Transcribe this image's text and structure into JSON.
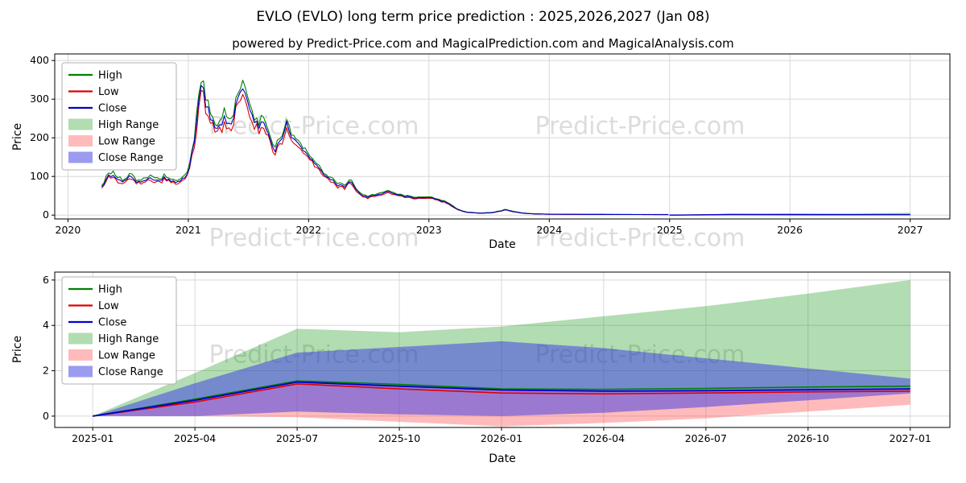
{
  "title": "EVLO (EVLO) long term price prediction : 2025,2026,2027 (Jan 08)",
  "subtitle": "powered by Predict-Price.com and MagicalPrediction.com and MagicalAnalysis.com",
  "watermark": "Predict-Price.com",
  "colors": {
    "high": "#008000",
    "low": "#e00000",
    "close": "#0000cd",
    "high_range": "rgba(0,140,0,0.30)",
    "low_range": "rgba(255,60,60,0.35)",
    "close_range": "rgba(55,55,230,0.50)",
    "grid": "#d8d8d8",
    "axis": "#000000"
  },
  "chart_data": [
    {
      "type": "line",
      "role": "history-and-prediction",
      "title": "",
      "xlabel": "Date",
      "ylabel": "Price",
      "xlim": [
        2019.89,
        2027.33
      ],
      "ylim": [
        -10,
        417
      ],
      "xticks": [
        2020,
        2021,
        2022,
        2023,
        2024,
        2025,
        2026,
        2027
      ],
      "yticks": [
        0,
        100,
        200,
        300,
        400
      ],
      "grid": true,
      "legend_position": "upper-left",
      "legend": [
        {
          "label": "High",
          "swatch": "line",
          "color": "high"
        },
        {
          "label": "Low",
          "swatch": "line",
          "color": "low"
        },
        {
          "label": "Close",
          "swatch": "line",
          "color": "close"
        },
        {
          "label": "High Range",
          "swatch": "patch",
          "color": "high_range"
        },
        {
          "label": "Low Range",
          "swatch": "patch",
          "color": "low_range"
        },
        {
          "label": "Close Range",
          "swatch": "patch",
          "color": "close_range"
        }
      ],
      "history_anchors": [
        [
          2020.28,
          72,
          0.06
        ],
        [
          2020.33,
          96,
          0.1
        ],
        [
          2020.38,
          108,
          0.1
        ],
        [
          2020.44,
          84,
          0.08
        ],
        [
          2020.5,
          100,
          0.09
        ],
        [
          2020.56,
          90,
          0.07
        ],
        [
          2020.62,
          84,
          0.07
        ],
        [
          2020.68,
          95,
          0.08
        ],
        [
          2020.74,
          87,
          0.07
        ],
        [
          2020.8,
          95,
          0.07
        ],
        [
          2020.87,
          85,
          0.06
        ],
        [
          2020.93,
          88,
          0.06
        ],
        [
          2021.0,
          110,
          0.08
        ],
        [
          2021.05,
          190,
          0.1
        ],
        [
          2021.1,
          345,
          0.12
        ],
        [
          2021.14,
          295,
          0.09
        ],
        [
          2021.18,
          248,
          0.08
        ],
        [
          2021.24,
          215,
          0.07
        ],
        [
          2021.3,
          252,
          0.08
        ],
        [
          2021.36,
          228,
          0.06
        ],
        [
          2021.42,
          310,
          0.07
        ],
        [
          2021.46,
          322,
          0.06
        ],
        [
          2021.52,
          255,
          0.07
        ],
        [
          2021.58,
          228,
          0.06
        ],
        [
          2021.62,
          238,
          0.06
        ],
        [
          2021.68,
          200,
          0.06
        ],
        [
          2021.72,
          168,
          0.06
        ],
        [
          2021.78,
          195,
          0.07
        ],
        [
          2021.82,
          248,
          0.07
        ],
        [
          2021.86,
          198,
          0.06
        ],
        [
          2021.92,
          178,
          0.05
        ],
        [
          2022.0,
          150,
          0.05
        ],
        [
          2022.08,
          124,
          0.06
        ],
        [
          2022.16,
          98,
          0.06
        ],
        [
          2022.24,
          78,
          0.07
        ],
        [
          2022.3,
          74,
          0.07
        ],
        [
          2022.34,
          88,
          0.06
        ],
        [
          2022.42,
          58,
          0.06
        ],
        [
          2022.48,
          46,
          0.06
        ],
        [
          2022.54,
          52,
          0.05
        ],
        [
          2022.62,
          57,
          0.06
        ],
        [
          2022.66,
          62,
          0.06
        ],
        [
          2022.72,
          54,
          0.05
        ],
        [
          2022.8,
          48,
          0.05
        ],
        [
          2022.9,
          44,
          0.04
        ],
        [
          2023.0,
          46,
          0.05
        ],
        [
          2023.08,
          40,
          0.04
        ],
        [
          2023.16,
          30,
          0.05
        ],
        [
          2023.24,
          14,
          0.06
        ],
        [
          2023.32,
          7,
          0.05
        ],
        [
          2023.42,
          5,
          0.04
        ],
        [
          2023.52,
          6,
          0.05
        ],
        [
          2023.6,
          11,
          0.07
        ],
        [
          2023.64,
          14,
          0.07
        ],
        [
          2023.7,
          9,
          0.05
        ],
        [
          2023.78,
          5,
          0.04
        ],
        [
          2023.88,
          3,
          0.03
        ],
        [
          2024.0,
          2.2,
          0.03
        ],
        [
          2024.25,
          1.8,
          0.02
        ],
        [
          2024.5,
          1.6,
          0.02
        ],
        [
          2024.75,
          1.4,
          0.02
        ],
        [
          2025.0,
          1.3,
          0.02
        ]
      ]
    },
    {
      "type": "line",
      "role": "prediction-detail",
      "title": "",
      "xlabel": "Date",
      "ylabel": "Price",
      "xlim": [
        2024.907,
        2027.097
      ],
      "ylim": [
        -0.5,
        6.35
      ],
      "x_labels": [
        "2025-01",
        "2025-04",
        "2025-07",
        "2025-10",
        "2026-01",
        "2026-04",
        "2026-07",
        "2026-10",
        "2027-01"
      ],
      "x_years": [
        2025.0,
        2025.25,
        2025.5,
        2025.75,
        2026.0,
        2026.25,
        2026.5,
        2026.75,
        2027.0
      ],
      "yticks": [
        0,
        2,
        4,
        6
      ],
      "grid": true,
      "legend_position": "upper-left",
      "legend": [
        {
          "label": "High",
          "swatch": "line",
          "color": "high"
        },
        {
          "label": "Low",
          "swatch": "line",
          "color": "low"
        },
        {
          "label": "Close",
          "swatch": "line",
          "color": "close"
        },
        {
          "label": "High Range",
          "swatch": "patch",
          "color": "high_range"
        },
        {
          "label": "Low Range",
          "swatch": "patch",
          "color": "low_range"
        },
        {
          "label": "Close Range",
          "swatch": "patch",
          "color": "close_range"
        }
      ],
      "series": {
        "high": [
          0,
          0.75,
          1.55,
          1.4,
          1.2,
          1.18,
          1.22,
          1.28,
          1.32
        ],
        "low": [
          0,
          0.62,
          1.42,
          1.2,
          1.02,
          0.98,
          1.02,
          1.07,
          1.1
        ],
        "close": [
          0,
          0.7,
          1.5,
          1.32,
          1.15,
          1.1,
          1.12,
          1.16,
          1.2
        ]
      },
      "bands": {
        "high_range_upper": [
          0,
          1.9,
          3.85,
          3.7,
          3.95,
          4.4,
          4.85,
          5.4,
          6.0
        ],
        "close_range_upper": [
          0,
          1.45,
          2.8,
          3.05,
          3.3,
          3.0,
          2.55,
          2.1,
          1.65
        ],
        "close_range_lower": [
          0,
          0.0,
          0.2,
          0.08,
          0.0,
          0.15,
          0.4,
          0.7,
          1.0
        ],
        "low_range_lower": [
          0,
          0.0,
          -0.05,
          -0.25,
          -0.45,
          -0.3,
          -0.1,
          0.2,
          0.5
        ]
      }
    }
  ]
}
